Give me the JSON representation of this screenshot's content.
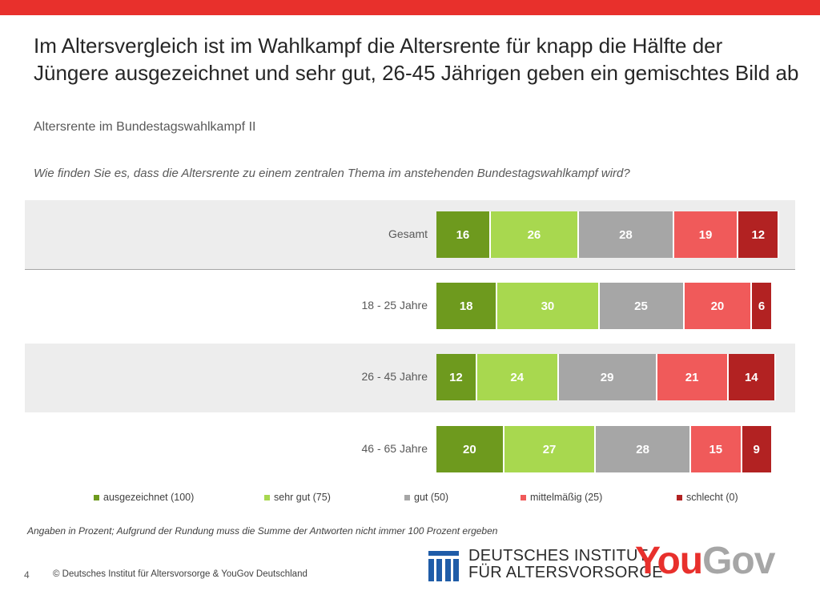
{
  "title_lines": [
    "Im Altersvergleich ist im Wahlkampf die Altersrente für knapp die Hälfte der",
    "Jüngere ausgezeichnet und sehr gut, 26-45 Jährigen geben ein gemischtes Bild ab"
  ],
  "subtitle": "Altersrente im Bundestagswahlkampf II",
  "question": "Wie finden Sie es, dass die Altersrente zu einem zentralen Thema im anstehenden Bundestagswahlkampf wird?",
  "chart_data": {
    "type": "bar",
    "orientation": "horizontal",
    "stacked": true,
    "categories": [
      "Gesamt",
      "18 - 25 Jahre",
      "26 - 45 Jahre",
      "46 - 65 Jahre"
    ],
    "series": [
      {
        "name": "ausgezeichnet (100)",
        "color": "#6e9a1e",
        "values": [
          16,
          18,
          12,
          20
        ]
      },
      {
        "name": "sehr gut (75)",
        "color": "#a8d84f",
        "values": [
          26,
          30,
          24,
          27
        ]
      },
      {
        "name": "gut (50)",
        "color": "#a6a6a6",
        "values": [
          28,
          25,
          29,
          28
        ]
      },
      {
        "name": "mittelmäßig (25)",
        "color": "#f05a5a",
        "values": [
          19,
          20,
          21,
          15
        ]
      },
      {
        "name": "schlecht (0)",
        "color": "#b22222",
        "values": [
          12,
          6,
          14,
          9
        ]
      }
    ],
    "unit": "Prozent",
    "legend_position": "bottom"
  },
  "note": "Angaben in Prozent; Aufgrund der Rundung muss die Summe der Antworten nicht immer 100 Prozent ergeben",
  "footer": {
    "page_number": "4",
    "copyright": "© Deutsches Institut für Altersvorsorge & YouGov Deutschland"
  },
  "logos": {
    "dia_line1": "DEUTSCHES INSTITUT",
    "dia_line2": "FÜR ALTERSVORSORGE",
    "dia_color": "#1f5ca8",
    "yougov_you": "You",
    "yougov_gov": "Gov"
  }
}
